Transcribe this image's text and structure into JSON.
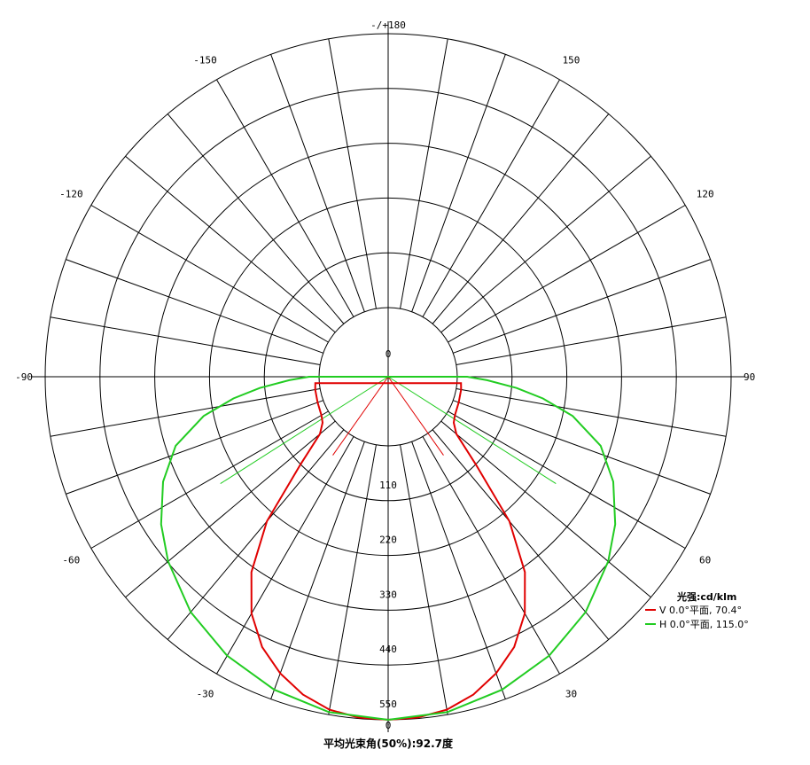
{
  "chart_data": {
    "type": "polar",
    "unit_label": "光强:cd/klm",
    "footer": "平均光束角(50%):92.7度",
    "radial_ticks": [
      0,
      110,
      220,
      330,
      440,
      550
    ],
    "r_max": 550,
    "angle_labels": [
      {
        "angle": 180,
        "text": "-/+180"
      },
      {
        "angle": -150,
        "text": "-150"
      },
      {
        "angle": 150,
        "text": "150"
      },
      {
        "angle": -120,
        "text": "-120"
      },
      {
        "angle": 120,
        "text": "120"
      },
      {
        "angle": -90,
        "text": "-90"
      },
      {
        "angle": 90,
        "text": "90"
      },
      {
        "angle": -60,
        "text": "-60"
      },
      {
        "angle": 60,
        "text": "60"
      },
      {
        "angle": -30,
        "text": "-30"
      },
      {
        "angle": 30,
        "text": "30"
      }
    ],
    "spoke_step_deg": 10,
    "grid": true,
    "legend_position": "right",
    "series": [
      {
        "name": "V 0.0°平面, 70.4°",
        "color": "#e00000",
        "beam_angle": 70.4,
        "points": [
          [
            0,
            550
          ],
          [
            5,
            548
          ],
          [
            10,
            540
          ],
          [
            15,
            522
          ],
          [
            20,
            495
          ],
          [
            25,
            460
          ],
          [
            30,
            410
          ],
          [
            35,
            340
          ],
          [
            40,
            240
          ],
          [
            45,
            110
          ],
          [
            50,
            40
          ],
          [
            55,
            22
          ],
          [
            60,
            16
          ],
          [
            70,
            12
          ],
          [
            80,
            10
          ],
          [
            85,
            8
          ]
        ]
      },
      {
        "name": "H 0.0°平面, 115.0°",
        "color": "#22cc22",
        "beam_angle": 115.0,
        "points": [
          [
            0,
            550
          ],
          [
            10,
            545
          ],
          [
            20,
            530
          ],
          [
            30,
            508
          ],
          [
            40,
            478
          ],
          [
            50,
            438
          ],
          [
            57,
            405
          ],
          [
            65,
            360
          ],
          [
            72,
            310
          ],
          [
            78,
            240
          ],
          [
            82,
            175
          ],
          [
            85,
            120
          ],
          [
            88,
            60
          ],
          [
            90,
            20
          ]
        ]
      }
    ]
  }
}
